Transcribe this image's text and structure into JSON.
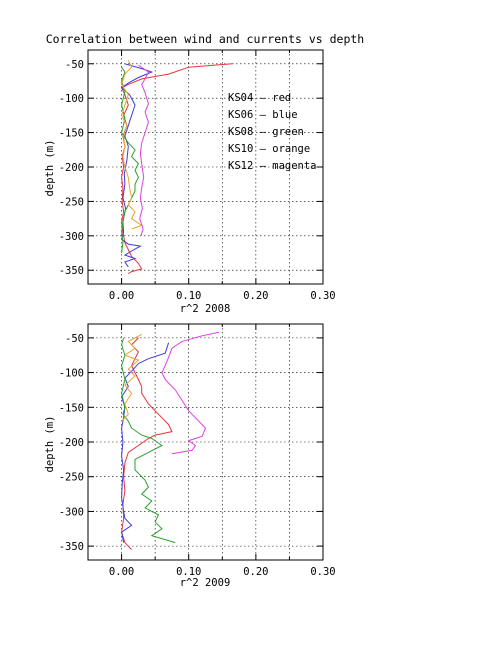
{
  "chart_data": [
    {
      "type": "line",
      "title": "Correlation between wind and currents vs depth",
      "xlabel": "r^2 2008",
      "ylabel": "depth (m)",
      "xlim": [
        -0.05,
        0.3
      ],
      "ylim": [
        -370,
        -30
      ],
      "xticks": [
        "0.00",
        "0.10",
        "0.20",
        "0.30"
      ],
      "yticks": [
        "-50",
        "-100",
        "-150",
        "-200",
        "-250",
        "-300",
        "-350"
      ],
      "grid": true,
      "legend_placement": "right",
      "legend": [
        {
          "text": "KS04  –  red",
          "color": "#e8333a"
        },
        {
          "text": "KS06  –  blue",
          "color": "#3b3bdc"
        },
        {
          "text": "KS08  –  green",
          "color": "#2ca02c"
        },
        {
          "text": "KS10  –  orange",
          "color": "#e6a532"
        },
        {
          "text": "KS12  –  magenta",
          "color": "#e040e0"
        }
      ],
      "series": [
        {
          "color": "#e8333a",
          "points": [
            [
              0.165,
              -50
            ],
            [
              0.1,
              -55
            ],
            [
              0.07,
              -65
            ],
            [
              0.03,
              -72
            ],
            [
              0.01,
              -80
            ],
            [
              0.0,
              -85
            ],
            [
              0.005,
              -95
            ],
            [
              0.01,
              -110
            ],
            [
              0.003,
              -125
            ],
            [
              0.008,
              -140
            ],
            [
              0.002,
              -155
            ],
            [
              0.005,
              -170
            ],
            [
              0.001,
              -185
            ],
            [
              0.003,
              -200
            ],
            [
              0.0,
              -215
            ],
            [
              0.002,
              -230
            ],
            [
              0.001,
              -250
            ],
            [
              0.003,
              -265
            ],
            [
              0.0,
              -280
            ],
            [
              0.002,
              -295
            ],
            [
              0.005,
              -310
            ],
            [
              0.01,
              -320
            ],
            [
              0.015,
              -330
            ],
            [
              0.02,
              -335
            ],
            [
              0.025,
              -340
            ],
            [
              0.03,
              -348
            ],
            [
              0.015,
              -352
            ],
            [
              0.01,
              -355
            ]
          ]
        },
        {
          "color": "#3b3bdc",
          "points": [
            [
              0.005,
              -50
            ],
            [
              0.03,
              -57
            ],
            [
              0.045,
              -62
            ],
            [
              0.025,
              -70
            ],
            [
              0.01,
              -78
            ],
            [
              0.0,
              -85
            ],
            [
              0.012,
              -95
            ],
            [
              0.02,
              -110
            ],
            [
              0.015,
              -125
            ],
            [
              0.01,
              -140
            ],
            [
              0.005,
              -155
            ],
            [
              0.01,
              -170
            ],
            [
              0.008,
              -190
            ],
            [
              0.004,
              -210
            ],
            [
              0.005,
              -225
            ],
            [
              0.002,
              -245
            ],
            [
              0.006,
              -260
            ],
            [
              0.002,
              -280
            ],
            [
              0.003,
              -295
            ],
            [
              0.0,
              -305
            ],
            [
              0.01,
              -312
            ],
            [
              0.028,
              -315
            ],
            [
              0.015,
              -322
            ],
            [
              0.005,
              -328
            ],
            [
              0.02,
              -333
            ],
            [
              0.005,
              -338
            ],
            [
              0.01,
              -345
            ]
          ]
        },
        {
          "color": "#2ca02c",
          "points": [
            [
              0.0,
              -55
            ],
            [
              0.005,
              -62
            ],
            [
              0.0,
              -75
            ],
            [
              0.005,
              -90
            ],
            [
              0.0,
              -110
            ],
            [
              0.005,
              -130
            ],
            [
              0.0,
              -150
            ],
            [
              0.01,
              -165
            ],
            [
              0.02,
              -175
            ],
            [
              0.015,
              -185
            ],
            [
              0.025,
              -195
            ],
            [
              0.02,
              -205
            ],
            [
              0.025,
              -215
            ],
            [
              0.02,
              -225
            ],
            [
              0.02,
              -235
            ],
            [
              0.015,
              -245
            ],
            [
              0.01,
              -255
            ],
            [
              0.005,
              -265
            ],
            [
              0.002,
              -280
            ],
            [
              0.0,
              -295
            ],
            [
              0.002,
              -310
            ],
            [
              0.0,
              -325
            ]
          ]
        },
        {
          "color": "#e6a532",
          "points": [
            [
              0.01,
              -45
            ],
            [
              0.015,
              -55
            ],
            [
              0.005,
              -65
            ],
            [
              0.0,
              -80
            ],
            [
              0.01,
              -95
            ],
            [
              0.005,
              -110
            ],
            [
              0.0,
              -125
            ],
            [
              0.008,
              -140
            ],
            [
              0.003,
              -155
            ],
            [
              0.005,
              -170
            ],
            [
              0.002,
              -185
            ],
            [
              0.005,
              -200
            ],
            [
              0.01,
              -215
            ],
            [
              0.012,
              -230
            ],
            [
              0.015,
              -245
            ],
            [
              0.01,
              -255
            ],
            [
              0.02,
              -265
            ],
            [
              0.015,
              -275
            ],
            [
              0.03,
              -285
            ],
            [
              0.015,
              -290
            ]
          ]
        },
        {
          "color": "#e040e0",
          "points": [
            [
              0.025,
              -52
            ],
            [
              0.04,
              -62
            ],
            [
              0.035,
              -72
            ],
            [
              0.03,
              -80
            ],
            [
              0.035,
              -92
            ],
            [
              0.04,
              -108
            ],
            [
              0.035,
              -120
            ],
            [
              0.04,
              -135
            ],
            [
              0.035,
              -150
            ],
            [
              0.03,
              -165
            ],
            [
              0.028,
              -180
            ],
            [
              0.03,
              -195
            ],
            [
              0.033,
              -215
            ],
            [
              0.03,
              -230
            ],
            [
              0.028,
              -245
            ],
            [
              0.031,
              -260
            ],
            [
              0.027,
              -275
            ],
            [
              0.032,
              -290
            ],
            [
              0.029,
              -300
            ]
          ]
        }
      ]
    },
    {
      "type": "line",
      "title": "",
      "xlabel": "r^2 2009",
      "ylabel": "depth (m)",
      "xlim": [
        -0.05,
        0.3
      ],
      "ylim": [
        -370,
        -30
      ],
      "xticks": [
        "0.00",
        "0.10",
        "0.20",
        "0.30"
      ],
      "yticks": [
        "-50",
        "-100",
        "-150",
        "-200",
        "-250",
        "-300",
        "-350"
      ],
      "grid": true,
      "series": [
        {
          "color": "#e8333a",
          "points": [
            [
              0.025,
              -50
            ],
            [
              0.015,
              -60
            ],
            [
              0.025,
              -70
            ],
            [
              0.02,
              -80
            ],
            [
              0.015,
              -90
            ],
            [
              0.02,
              -100
            ],
            [
              0.025,
              -110
            ],
            [
              0.03,
              -120
            ],
            [
              0.03,
              -130
            ],
            [
              0.04,
              -145
            ],
            [
              0.05,
              -155
            ],
            [
              0.06,
              -165
            ],
            [
              0.07,
              -175
            ],
            [
              0.075,
              -185
            ],
            [
              0.05,
              -190
            ],
            [
              0.04,
              -195
            ],
            [
              0.025,
              -205
            ],
            [
              0.01,
              -215
            ],
            [
              0.005,
              -230
            ],
            [
              0.003,
              -250
            ],
            [
              0.005,
              -270
            ],
            [
              0.002,
              -290
            ],
            [
              0.003,
              -310
            ],
            [
              0.0,
              -330
            ],
            [
              0.005,
              -345
            ],
            [
              0.015,
              -355
            ]
          ]
        },
        {
          "color": "#3b3bdc",
          "points": [
            [
              0.07,
              -57
            ],
            [
              0.065,
              -72
            ],
            [
              0.04,
              -80
            ],
            [
              0.025,
              -87
            ],
            [
              0.015,
              -98
            ],
            [
              0.005,
              -108
            ],
            [
              0.01,
              -120
            ],
            [
              0.0,
              -135
            ],
            [
              0.005,
              -150
            ],
            [
              0.003,
              -165
            ],
            [
              0.0,
              -180
            ],
            [
              0.002,
              -200
            ],
            [
              0.0,
              -220
            ],
            [
              0.003,
              -240
            ],
            [
              0.001,
              -260
            ],
            [
              0.0,
              -280
            ],
            [
              0.003,
              -300
            ],
            [
              0.005,
              -310
            ],
            [
              0.015,
              -320
            ],
            [
              0.0,
              -330
            ],
            [
              0.003,
              -345
            ]
          ]
        },
        {
          "color": "#2ca02c",
          "points": [
            [
              0.003,
              -50
            ],
            [
              0.0,
              -60
            ],
            [
              0.005,
              -75
            ],
            [
              0.0,
              -90
            ],
            [
              0.005,
              -110
            ],
            [
              0.0,
              -130
            ],
            [
              0.005,
              -150
            ],
            [
              0.002,
              -160
            ],
            [
              0.01,
              -170
            ],
            [
              0.015,
              -180
            ],
            [
              0.03,
              -190
            ],
            [
              0.045,
              -195
            ],
            [
              0.06,
              -205
            ],
            [
              0.04,
              -215
            ],
            [
              0.02,
              -225
            ],
            [
              0.02,
              -240
            ],
            [
              0.035,
              -255
            ],
            [
              0.04,
              -265
            ],
            [
              0.03,
              -275
            ],
            [
              0.045,
              -285
            ],
            [
              0.035,
              -295
            ],
            [
              0.055,
              -305
            ],
            [
              0.05,
              -315
            ],
            [
              0.06,
              -325
            ],
            [
              0.045,
              -335
            ],
            [
              0.08,
              -345
            ]
          ]
        },
        {
          "color": "#e6a532",
          "points": [
            [
              0.03,
              -45
            ],
            [
              0.01,
              -55
            ],
            [
              0.02,
              -65
            ],
            [
              0.005,
              -75
            ],
            [
              0.025,
              -82
            ],
            [
              0.01,
              -95
            ],
            [
              0.02,
              -105
            ],
            [
              0.005,
              -118
            ],
            [
              0.015,
              -130
            ],
            [
              0.005,
              -145
            ],
            [
              0.01,
              -160
            ],
            [
              0.0,
              -170
            ]
          ]
        },
        {
          "color": "#e040e0",
          "points": [
            [
              0.145,
              -42
            ],
            [
              0.12,
              -47
            ],
            [
              0.09,
              -55
            ],
            [
              0.075,
              -65
            ],
            [
              0.07,
              -78
            ],
            [
              0.065,
              -90
            ],
            [
              0.06,
              -100
            ],
            [
              0.065,
              -110
            ],
            [
              0.08,
              -125
            ],
            [
              0.09,
              -140
            ],
            [
              0.1,
              -155
            ],
            [
              0.115,
              -170
            ],
            [
              0.125,
              -180
            ],
            [
              0.12,
              -192
            ],
            [
              0.1,
              -198
            ],
            [
              0.11,
              -205
            ],
            [
              0.105,
              -212
            ],
            [
              0.075,
              -217
            ]
          ]
        }
      ]
    }
  ]
}
